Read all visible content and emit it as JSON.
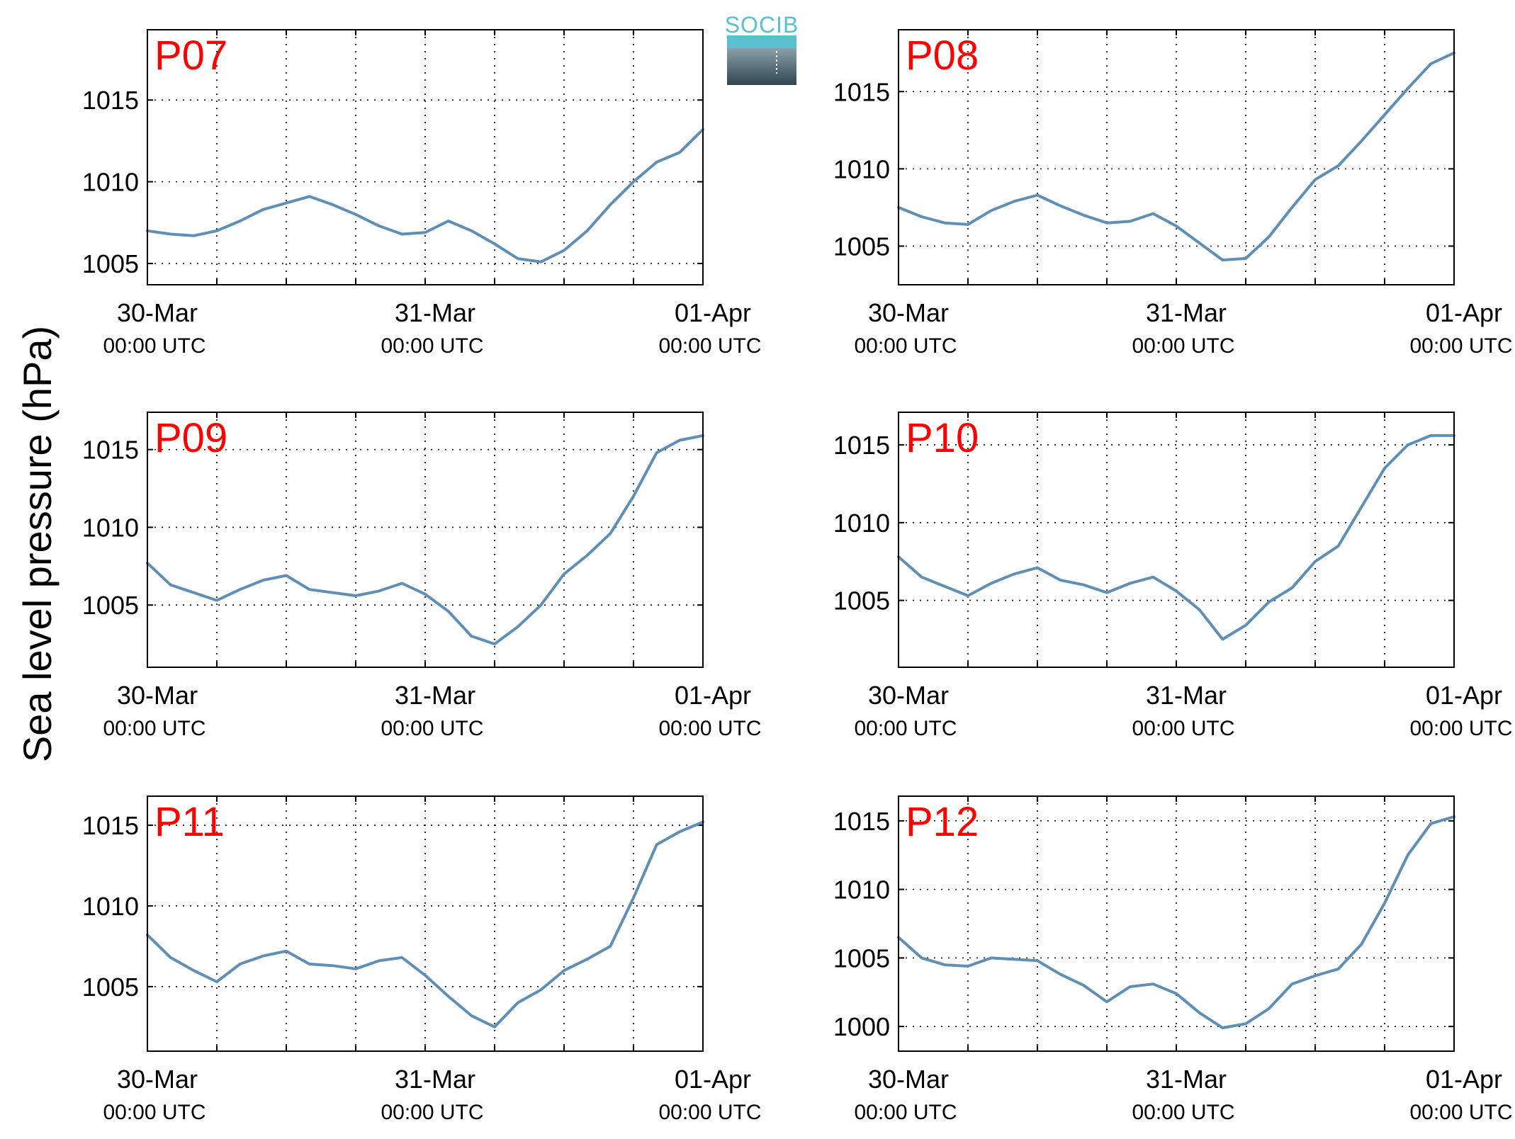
{
  "figure": {
    "ylabel": "Sea level pressure (hPa)",
    "logo_text": "SOCIB",
    "colors": {
      "line": "#5f8fb5",
      "panel_label": "#ff0000",
      "axes": "#000000",
      "grid": "#000000",
      "logo_top": "#5bbfcf",
      "logo_bottom": "#2f4650"
    }
  },
  "chart_data": [
    {
      "type": "line",
      "title": "P07",
      "grid": true,
      "ylim": [
        1003.7,
        1019.3
      ],
      "yticks": [
        "1005",
        "1010",
        "1015"
      ],
      "x_range": [
        "30-Mar 00:00 UTC",
        "01-Apr 00:00 UTC"
      ],
      "x_ticks": [
        {
          "date": "30-Mar",
          "time": "00:00 UTC"
        },
        {
          "date": "31-Mar",
          "time": "00:00 UTC"
        },
        {
          "date": "01-Apr",
          "time": "00:00 UTC"
        }
      ],
      "series": [
        {
          "x_hours": [
            0,
            2,
            4,
            6,
            8,
            10,
            12,
            14,
            16,
            18,
            20,
            22,
            24,
            26,
            28,
            30,
            32,
            34,
            36,
            38,
            40,
            42,
            44,
            46,
            48
          ],
          "values": [
            1007.0,
            1006.8,
            1006.7,
            1007.0,
            1007.6,
            1008.3,
            1008.7,
            1009.1,
            1008.6,
            1008.0,
            1007.3,
            1006.8,
            1006.9,
            1007.6,
            1007.0,
            1006.2,
            1005.3,
            1005.1,
            1005.8,
            1007.0,
            1008.6,
            1010.0,
            1011.2,
            1011.8,
            1013.2
          ]
        }
      ]
    },
    {
      "type": "line",
      "title": "P08",
      "grid": true,
      "ylim": [
        1002.5,
        1019.0
      ],
      "yticks": [
        "1005",
        "1010",
        "1015"
      ],
      "x_range": [
        "30-Mar 00:00 UTC",
        "01-Apr 00:00 UTC"
      ],
      "x_ticks": [
        {
          "date": "30-Mar",
          "time": "00:00 UTC"
        },
        {
          "date": "31-Mar",
          "time": "00:00 UTC"
        },
        {
          "date": "01-Apr",
          "time": "00:00 UTC"
        }
      ],
      "series": [
        {
          "x_hours": [
            0,
            2,
            4,
            6,
            8,
            10,
            12,
            14,
            16,
            18,
            20,
            22,
            24,
            26,
            28,
            30,
            32,
            34,
            36,
            38,
            40,
            42,
            44,
            46,
            48
          ],
          "values": [
            1007.5,
            1006.9,
            1006.5,
            1006.4,
            1007.3,
            1007.9,
            1008.3,
            1007.6,
            1007.0,
            1006.5,
            1006.6,
            1007.1,
            1006.3,
            1005.2,
            1004.1,
            1004.2,
            1005.6,
            1007.5,
            1009.3,
            1010.2,
            1011.8,
            1013.5,
            1015.2,
            1016.8,
            1017.5
          ]
        }
      ]
    },
    {
      "type": "line",
      "title": "P09",
      "grid": true,
      "ylim": [
        1001.0,
        1017.4
      ],
      "yticks": [
        "1005",
        "1010",
        "1015"
      ],
      "x_range": [
        "30-Mar 00:00 UTC",
        "01-Apr 00:00 UTC"
      ],
      "x_ticks": [
        {
          "date": "30-Mar",
          "time": "00:00 UTC"
        },
        {
          "date": "31-Mar",
          "time": "00:00 UTC"
        },
        {
          "date": "01-Apr",
          "time": "00:00 UTC"
        }
      ],
      "series": [
        {
          "x_hours": [
            0,
            2,
            4,
            6,
            8,
            10,
            12,
            14,
            16,
            18,
            20,
            22,
            24,
            26,
            28,
            30,
            32,
            34,
            36,
            38,
            40,
            42,
            44,
            46,
            48
          ],
          "values": [
            1007.7,
            1006.3,
            1005.8,
            1005.3,
            1006.0,
            1006.6,
            1006.9,
            1006.0,
            1005.8,
            1005.6,
            1005.9,
            1006.4,
            1005.7,
            1004.6,
            1003.0,
            1002.5,
            1003.6,
            1005.0,
            1007.0,
            1008.2,
            1009.6,
            1012.0,
            1014.8,
            1015.6,
            1015.9
          ]
        }
      ]
    },
    {
      "type": "line",
      "title": "P10",
      "grid": true,
      "ylim": [
        1000.7,
        1017.1
      ],
      "yticks": [
        "1005",
        "1010",
        "1015"
      ],
      "x_range": [
        "30-Mar 00:00 UTC",
        "01-Apr 00:00 UTC"
      ],
      "x_ticks": [
        {
          "date": "30-Mar",
          "time": "00:00 UTC"
        },
        {
          "date": "31-Mar",
          "time": "00:00 UTC"
        },
        {
          "date": "01-Apr",
          "time": "00:00 UTC"
        }
      ],
      "series": [
        {
          "x_hours": [
            0,
            2,
            4,
            6,
            8,
            10,
            12,
            14,
            16,
            18,
            20,
            22,
            24,
            26,
            28,
            30,
            32,
            34,
            36,
            38,
            40,
            42,
            44,
            46,
            48
          ],
          "values": [
            1007.8,
            1006.5,
            1005.9,
            1005.3,
            1006.1,
            1006.7,
            1007.1,
            1006.3,
            1006.0,
            1005.5,
            1006.1,
            1006.5,
            1005.6,
            1004.4,
            1002.5,
            1003.4,
            1004.9,
            1005.8,
            1007.5,
            1008.5,
            1011.0,
            1013.5,
            1015.0,
            1015.6,
            1015.6
          ]
        }
      ]
    },
    {
      "type": "line",
      "title": "P11",
      "grid": true,
      "ylim": [
        1001.0,
        1016.8
      ],
      "yticks": [
        "1005",
        "1010",
        "1015"
      ],
      "x_range": [
        "30-Mar 00:00 UTC",
        "01-Apr 00:00 UTC"
      ],
      "x_ticks": [
        {
          "date": "30-Mar",
          "time": "00:00 UTC"
        },
        {
          "date": "31-Mar",
          "time": "00:00 UTC"
        },
        {
          "date": "01-Apr",
          "time": "00:00 UTC"
        }
      ],
      "series": [
        {
          "x_hours": [
            0,
            2,
            4,
            6,
            8,
            10,
            12,
            14,
            16,
            18,
            20,
            22,
            24,
            26,
            28,
            30,
            32,
            34,
            36,
            38,
            40,
            42,
            44,
            46,
            48
          ],
          "values": [
            1008.2,
            1006.8,
            1006.0,
            1005.3,
            1006.4,
            1006.9,
            1007.2,
            1006.4,
            1006.3,
            1006.1,
            1006.6,
            1006.8,
            1005.7,
            1004.4,
            1003.2,
            1002.5,
            1004.0,
            1004.8,
            1006.0,
            1006.7,
            1007.5,
            1010.5,
            1013.8,
            1014.6,
            1015.2
          ]
        }
      ]
    },
    {
      "type": "line",
      "title": "P12",
      "grid": true,
      "ylim": [
        998.2,
        1016.8
      ],
      "yticks": [
        "1000",
        "1005",
        "1010",
        "1015"
      ],
      "x_range": [
        "30-Mar 00:00 UTC",
        "01-Apr 00:00 UTC"
      ],
      "x_ticks": [
        {
          "date": "30-Mar",
          "time": "00:00 UTC"
        },
        {
          "date": "31-Mar",
          "time": "00:00 UTC"
        },
        {
          "date": "01-Apr",
          "time": "00:00 UTC"
        }
      ],
      "series": [
        {
          "x_hours": [
            0,
            2,
            4,
            6,
            8,
            10,
            12,
            14,
            16,
            18,
            20,
            22,
            24,
            26,
            28,
            30,
            32,
            34,
            36,
            38,
            40,
            42,
            44,
            46,
            48
          ],
          "values": [
            1006.5,
            1005.0,
            1004.5,
            1004.4,
            1005.0,
            1004.9,
            1004.8,
            1003.8,
            1003.0,
            1001.8,
            1002.9,
            1003.1,
            1002.4,
            1001.0,
            999.9,
            1000.2,
            1001.3,
            1003.1,
            1003.7,
            1004.2,
            1006.0,
            1009.0,
            1012.5,
            1014.8,
            1015.3
          ]
        }
      ]
    }
  ]
}
